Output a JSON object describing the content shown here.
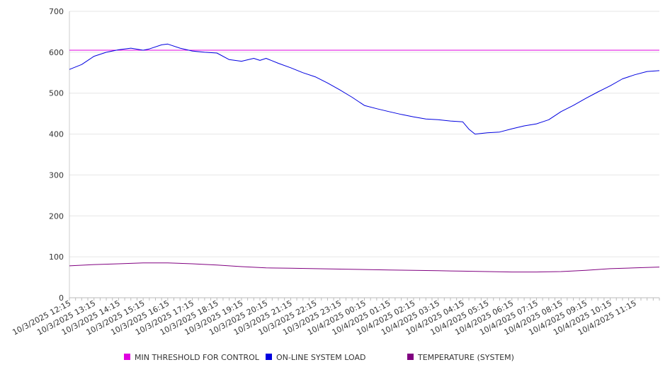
{
  "chart_data": {
    "type": "line",
    "title": "",
    "xlabel": "",
    "ylabel": "",
    "ylim": [
      0,
      700
    ],
    "y_ticks": [
      0,
      100,
      200,
      300,
      400,
      500,
      600,
      700
    ],
    "x_ticks": [
      "10/3/2025 12:15",
      "10/3/2025 13:15",
      "10/3/2025 14:15",
      "10/3/2025 15:15",
      "10/3/2025 16:15",
      "10/3/2025 17:15",
      "10/3/2025 18:15",
      "10/3/2025 19:15",
      "10/3/2025 20:15",
      "10/3/2025 21:15",
      "10/3/2025 22:15",
      "10/3/2025 23:15",
      "10/4/2025 00:15",
      "10/4/2025 01:15",
      "10/4/2025 02:15",
      "10/4/2025 03:15",
      "10/4/2025 04:15",
      "10/4/2025 05:15",
      "10/4/2025 06:15",
      "10/4/2025 07:15",
      "10/4/2025 08:15",
      "10/4/2025 09:15",
      "10/4/2025 10:15",
      "10/4/2025 11:15"
    ],
    "x_range": [
      "10/3/2025 12:15",
      "10/4/2025 12:15"
    ],
    "grid": true,
    "legend_position": "bottom",
    "series": [
      {
        "name": "MIN THRESHOLD FOR CONTROL",
        "color": "#e000e0",
        "x": [
          "10/3/2025 12:15",
          "10/4/2025 12:15"
        ],
        "values": [
          605,
          605
        ]
      },
      {
        "name": "ON-LINE SYSTEM LOAD",
        "color": "#0000e0",
        "x": [
          "10/3/2025 12:15",
          "10/3/2025 12:45",
          "10/3/2025 13:15",
          "10/3/2025 13:45",
          "10/3/2025 14:15",
          "10/3/2025 14:45",
          "10/3/2025 15:15",
          "10/3/2025 15:30",
          "10/3/2025 16:00",
          "10/3/2025 16:15",
          "10/3/2025 16:45",
          "10/3/2025 17:15",
          "10/3/2025 17:45",
          "10/3/2025 18:15",
          "10/3/2025 18:45",
          "10/3/2025 19:15",
          "10/3/2025 19:45",
          "10/3/2025 20:00",
          "10/3/2025 20:15",
          "10/3/2025 20:45",
          "10/3/2025 21:15",
          "10/3/2025 21:45",
          "10/3/2025 22:15",
          "10/3/2025 22:45",
          "10/3/2025 23:15",
          "10/3/2025 23:45",
          "10/4/2025 00:15",
          "10/4/2025 00:45",
          "10/4/2025 01:15",
          "10/4/2025 01:45",
          "10/4/2025 02:15",
          "10/4/2025 02:45",
          "10/4/2025 03:15",
          "10/4/2025 03:45",
          "10/4/2025 04:15",
          "10/4/2025 04:30",
          "10/4/2025 04:45",
          "10/4/2025 05:15",
          "10/4/2025 05:45",
          "10/4/2025 06:15",
          "10/4/2025 06:45",
          "10/4/2025 07:15",
          "10/4/2025 07:45",
          "10/4/2025 08:15",
          "10/4/2025 08:45",
          "10/4/2025 09:15",
          "10/4/2025 09:45",
          "10/4/2025 10:15",
          "10/4/2025 10:45",
          "10/4/2025 11:15",
          "10/4/2025 11:45",
          "10/4/2025 12:15"
        ],
        "values": [
          558,
          570,
          590,
          600,
          606,
          610,
          605,
          608,
          618,
          620,
          610,
          603,
          600,
          598,
          582,
          578,
          585,
          580,
          585,
          573,
          562,
          550,
          540,
          525,
          508,
          490,
          470,
          462,
          455,
          448,
          442,
          437,
          435,
          432,
          430,
          412,
          400,
          403,
          405,
          413,
          420,
          425,
          435,
          455,
          470,
          487,
          503,
          518,
          535,
          545,
          553,
          555
        ]
      },
      {
        "name": "TEMPERATURE (SYSTEM)",
        "color": "#800080",
        "x": [
          "10/3/2025 12:15",
          "10/3/2025 13:15",
          "10/3/2025 14:15",
          "10/3/2025 15:15",
          "10/3/2025 16:15",
          "10/3/2025 17:15",
          "10/3/2025 18:15",
          "10/3/2025 19:15",
          "10/3/2025 20:15",
          "10/3/2025 21:15",
          "10/3/2025 22:15",
          "10/3/2025 23:15",
          "10/4/2025 00:15",
          "10/4/2025 01:15",
          "10/4/2025 02:15",
          "10/4/2025 03:15",
          "10/4/2025 04:15",
          "10/4/2025 05:15",
          "10/4/2025 06:15",
          "10/4/2025 07:15",
          "10/4/2025 08:15",
          "10/4/2025 09:15",
          "10/4/2025 10:15",
          "10/4/2025 11:15",
          "10/4/2025 12:15"
        ],
        "values": [
          78,
          81,
          83,
          85,
          85,
          83,
          80,
          76,
          73,
          72,
          71,
          70,
          69,
          68,
          67,
          66,
          65,
          64,
          63,
          63,
          64,
          67,
          71,
          73,
          75
        ]
      }
    ]
  }
}
